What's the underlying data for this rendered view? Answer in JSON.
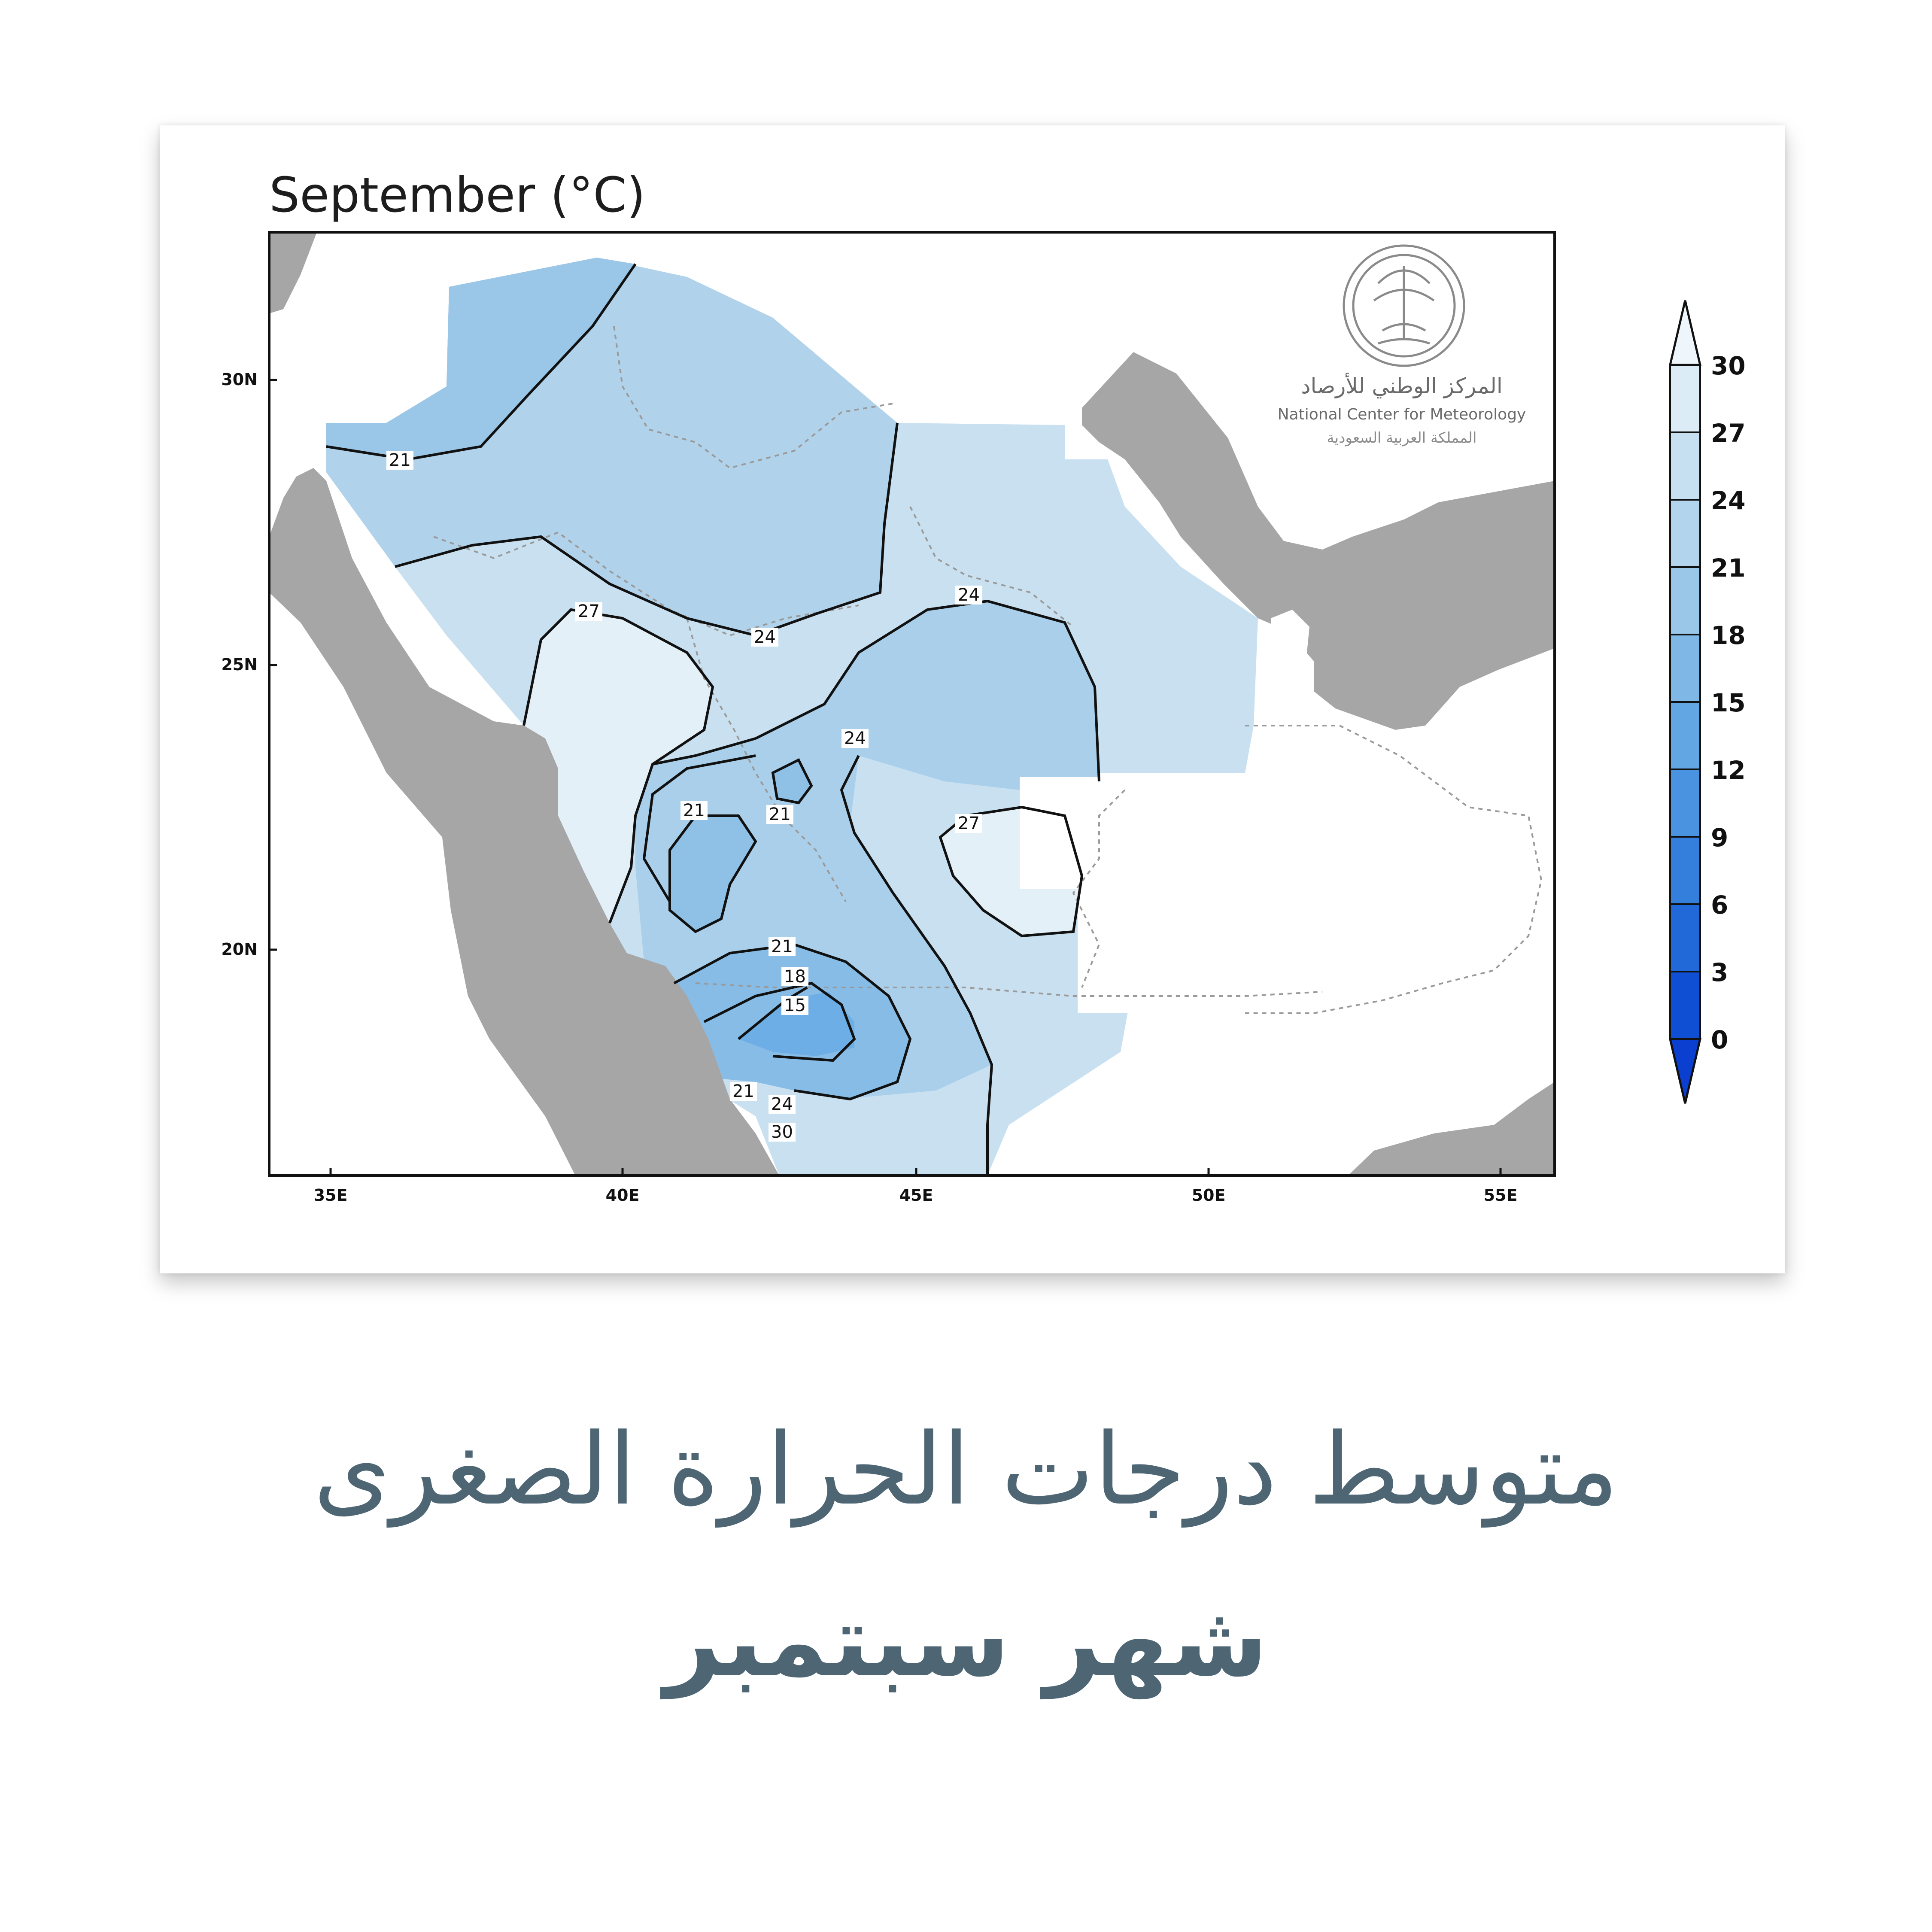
{
  "map": {
    "title": "September (°C)",
    "lat_labels": [
      "30N",
      "25N",
      "20N"
    ],
    "lon_labels": [
      "35E",
      "40E",
      "45E",
      "50E",
      "55E"
    ],
    "contour_labels": [
      "21",
      "27",
      "24",
      "24",
      "24",
      "21",
      "21",
      "27",
      "21",
      "18",
      "15",
      "21",
      "24",
      "30"
    ],
    "colorbar": {
      "levels": [
        "30",
        "27",
        "24",
        "21",
        "18",
        "15",
        "12",
        "9",
        "6",
        "3",
        "0"
      ],
      "colors": [
        "#eef6fb",
        "#dcecf7",
        "#c7e0f1",
        "#b2d4ec",
        "#9ac7e8",
        "#7fb8e6",
        "#62a7e4",
        "#4a93e0",
        "#347fdc",
        "#2168d8",
        "#0e4fd3",
        "#0a3fd0"
      ]
    },
    "logo": {
      "arabic": "المركز الوطني للأرصاد",
      "english": "National Center for Meteorology",
      "sub": "المملكة العربية السعودية"
    }
  },
  "caption": {
    "line1": "متوسط درجات الحرارة الصغرى",
    "line2": "شهر سبتمبر"
  }
}
